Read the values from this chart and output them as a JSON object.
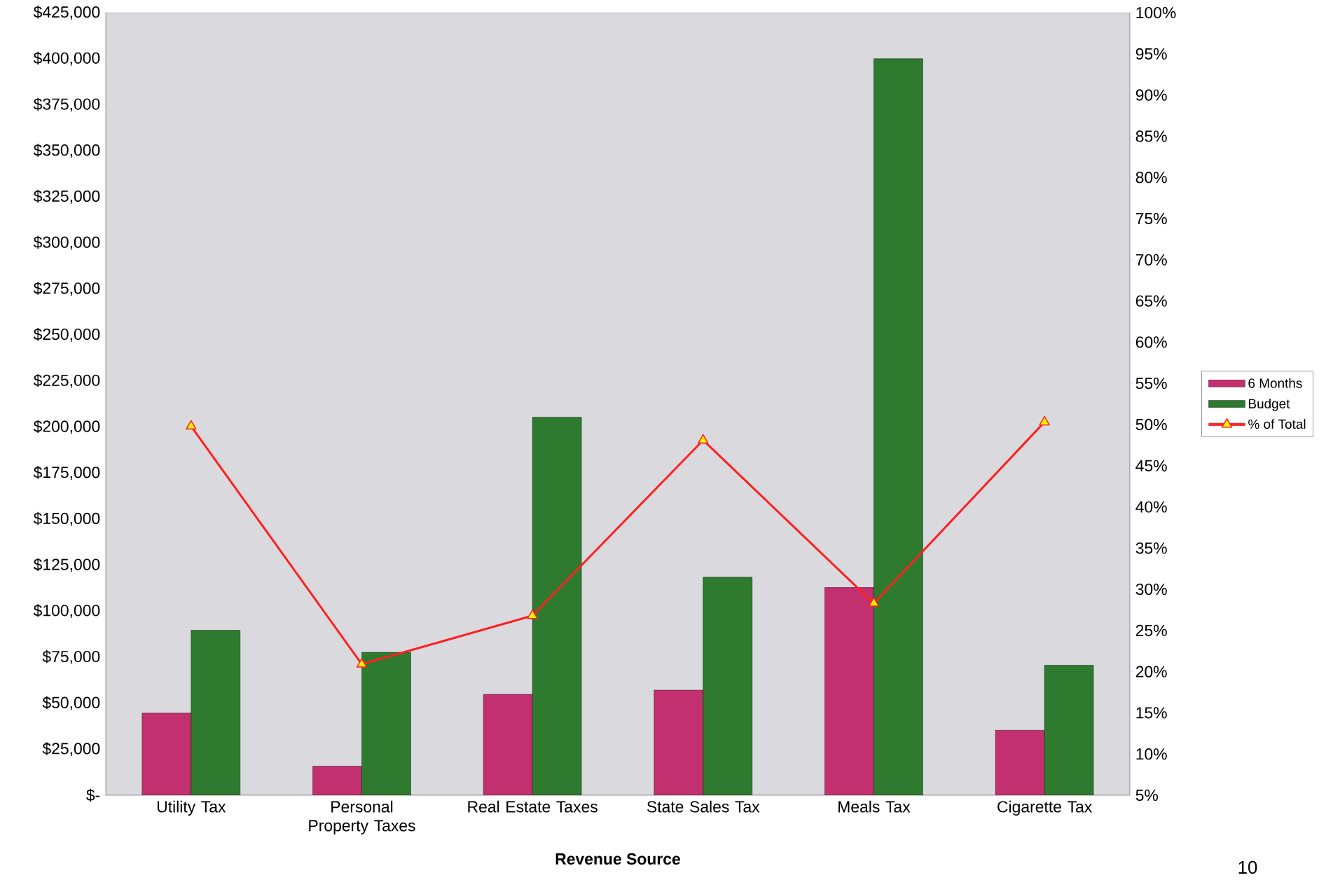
{
  "chart_data": {
    "type": "bar",
    "xlabel": "Revenue Source",
    "categories": [
      "Utility Tax",
      "Personal Property Taxes",
      "Real Estate Taxes",
      "State Sales Tax",
      "Meals Tax",
      "Cigarette Tax"
    ],
    "series": [
      {
        "name": "6 Months",
        "color": "#c2306f",
        "values": [
          44600,
          15800,
          54800,
          57100,
          112900,
          35300
        ]
      },
      {
        "name": "Budget",
        "color": "#2e7a2e",
        "values": [
          89600,
          77600,
          205300,
          118400,
          400000,
          70600
        ]
      },
      {
        "name": "% of Total",
        "type": "line",
        "axis": "y2",
        "color": "#ff2020",
        "marker": "triangle",
        "values": [
          49.8,
          20.9,
          26.8,
          48.1,
          28.3,
          50.3
        ]
      }
    ],
    "ylim": [
      0,
      425000
    ],
    "yticks": [
      {
        "value": 0,
        "label": "$-"
      },
      {
        "value": 25000,
        "label": "$25,000"
      },
      {
        "value": 50000,
        "label": "$50,000"
      },
      {
        "value": 75000,
        "label": "$75,000"
      },
      {
        "value": 100000,
        "label": "$100,000"
      },
      {
        "value": 125000,
        "label": "$125,000"
      },
      {
        "value": 150000,
        "label": "$150,000"
      },
      {
        "value": 175000,
        "label": "$175,000"
      },
      {
        "value": 200000,
        "label": "$200,000"
      },
      {
        "value": 225000,
        "label": "$225,000"
      },
      {
        "value": 250000,
        "label": "$250,000"
      },
      {
        "value": 275000,
        "label": "$275,000"
      },
      {
        "value": 300000,
        "label": "$300,000"
      },
      {
        "value": 325000,
        "label": "$325,000"
      },
      {
        "value": 350000,
        "label": "$350,000"
      },
      {
        "value": 375000,
        "label": "$375,000"
      },
      {
        "value": 400000,
        "label": "$400,000"
      },
      {
        "value": 425000,
        "label": "$425,000"
      }
    ],
    "y2lim": [
      5,
      100
    ],
    "y2ticks": [
      {
        "value": 5,
        "label": "5%"
      },
      {
        "value": 10,
        "label": "10%"
      },
      {
        "value": 15,
        "label": "15%"
      },
      {
        "value": 20,
        "label": "20%"
      },
      {
        "value": 25,
        "label": "25%"
      },
      {
        "value": 30,
        "label": "30%"
      },
      {
        "value": 35,
        "label": "35%"
      },
      {
        "value": 40,
        "label": "40%"
      },
      {
        "value": 45,
        "label": "45%"
      },
      {
        "value": 50,
        "label": "50%"
      },
      {
        "value": 55,
        "label": "55%"
      },
      {
        "value": 60,
        "label": "60%"
      },
      {
        "value": 65,
        "label": "65%"
      },
      {
        "value": 70,
        "label": "70%"
      },
      {
        "value": 75,
        "label": "75%"
      },
      {
        "value": 80,
        "label": "80%"
      },
      {
        "value": 85,
        "label": "85%"
      },
      {
        "value": 90,
        "label": "90%"
      },
      {
        "value": 95,
        "label": "95%"
      },
      {
        "value": 100,
        "label": "100%"
      }
    ],
    "legend": "right",
    "annotations": [
      "10"
    ]
  }
}
